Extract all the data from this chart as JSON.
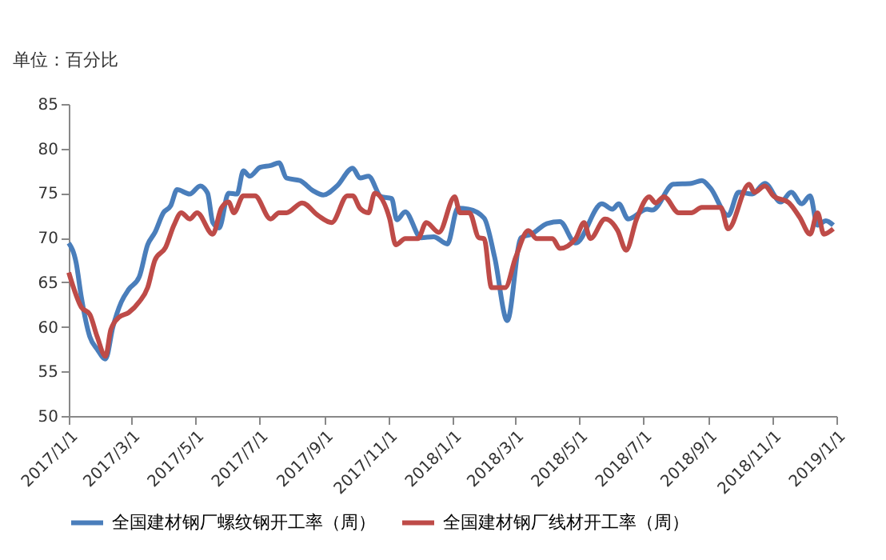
{
  "chart_data": {
    "type": "line",
    "annotations": [
      "单位：百分比"
    ],
    "xlim": [
      "2017-01-01",
      "2019-01-01"
    ],
    "xticks": [
      {
        "value": "2017-01-01",
        "label": "2017/1/1"
      },
      {
        "value": "2017-03-01",
        "label": "2017/3/1"
      },
      {
        "value": "2017-05-01",
        "label": "2017/5/1"
      },
      {
        "value": "2017-07-01",
        "label": "2017/7/1"
      },
      {
        "value": "2017-09-01",
        "label": "2017/9/1"
      },
      {
        "value": "2017-11-01",
        "label": "2017/11/1"
      },
      {
        "value": "2018-01-01",
        "label": "2018/1/1"
      },
      {
        "value": "2018-03-01",
        "label": "2018/3/1"
      },
      {
        "value": "2018-05-01",
        "label": "2018/5/1"
      },
      {
        "value": "2018-07-01",
        "label": "2018/7/1"
      },
      {
        "value": "2018-09-01",
        "label": "2018/9/1"
      },
      {
        "value": "2018-11-01",
        "label": "2018/11/1"
      },
      {
        "value": "2019-01-01",
        "label": "2019/1/1"
      }
    ],
    "ylim": [
      50,
      85
    ],
    "yticks": [
      50,
      55,
      60,
      65,
      70,
      75,
      80,
      85
    ],
    "grid": false,
    "legend": "bottom",
    "marker": "none",
    "line_style": "solid",
    "series": [
      {
        "name": "全国建材钢厂螺纹钢开工率（周）",
        "color": "#4a7ebb",
        "x": [
          "2017-01-01",
          "2017-01-08",
          "2017-01-13",
          "2017-01-21",
          "2017-01-28",
          "2017-02-05",
          "2017-02-12",
          "2017-02-20",
          "2017-02-27",
          "2017-03-09",
          "2017-03-17",
          "2017-03-24",
          "2017-04-01",
          "2017-04-08",
          "2017-04-14",
          "2017-04-26",
          "2017-05-06",
          "2017-05-13",
          "2017-05-18",
          "2017-05-24",
          "2017-06-02",
          "2017-06-10",
          "2017-06-16",
          "2017-06-22",
          "2017-07-02",
          "2017-07-12",
          "2017-07-20",
          "2017-07-27",
          "2017-08-09",
          "2017-08-21",
          "2017-08-31",
          "2017-09-13",
          "2017-09-28",
          "2017-10-05",
          "2017-10-13",
          "2017-10-25",
          "2017-11-04",
          "2017-11-09",
          "2017-11-17",
          "2017-12-02",
          "2017-12-14",
          "2017-12-27",
          "2018-01-06",
          "2018-01-16",
          "2018-01-31",
          "2018-02-10",
          "2018-02-22",
          "2018-03-07",
          "2018-03-17",
          "2018-04-01",
          "2018-04-13",
          "2018-04-28",
          "2018-05-23",
          "2018-06-02",
          "2018-06-08",
          "2018-06-17",
          "2018-07-05",
          "2018-07-10",
          "2018-07-30",
          "2018-08-16",
          "2018-08-26",
          "2018-09-03",
          "2018-09-20",
          "2018-09-30",
          "2018-10-13",
          "2018-10-25",
          "2018-11-09",
          "2018-11-19",
          "2018-11-29",
          "2018-12-07",
          "2018-12-14",
          "2018-12-22",
          "2018-12-29"
        ],
        "values": [
          69.4,
          67.2,
          63.3,
          58.9,
          57.5,
          56.4,
          60,
          62.8,
          64.2,
          65.6,
          69.2,
          70.6,
          72.8,
          73.6,
          75.4,
          74.9,
          75.8,
          75,
          71.7,
          71.1,
          75,
          74.9,
          77.5,
          76.9,
          77.9,
          78.1,
          78.4,
          76.7,
          76.4,
          75.3,
          74.8,
          75.8,
          77.8,
          76.7,
          76.9,
          74.6,
          74.4,
          72,
          72.9,
          70,
          70.1,
          69.3,
          73.3,
          73.2,
          72.2,
          67.8,
          60.7,
          70,
          70.4,
          71.6,
          71.8,
          69.4,
          73.8,
          73.2,
          73.8,
          72.1,
          73.2,
          73.1,
          76,
          76.1,
          76.4,
          75.6,
          72.5,
          75.1,
          74.9,
          76.1,
          74,
          75.1,
          73.8,
          74.7,
          71.4,
          71.9,
          71.4
        ]
      },
      {
        "name": "全国建材钢厂线材开工率（周）",
        "color": "#be4b48",
        "x": [
          "2017-01-01",
          "2017-01-13",
          "2017-01-21",
          "2017-01-28",
          "2017-02-05",
          "2017-02-10",
          "2017-02-18",
          "2017-02-27",
          "2017-03-09",
          "2017-03-17",
          "2017-03-24",
          "2017-04-03",
          "2017-04-11",
          "2017-04-18",
          "2017-04-26",
          "2017-05-03",
          "2017-05-18",
          "2017-05-26",
          "2017-06-02",
          "2017-06-07",
          "2017-06-16",
          "2017-06-27",
          "2017-07-12",
          "2017-07-20",
          "2017-07-27",
          "2017-08-11",
          "2017-08-26",
          "2017-09-08",
          "2017-09-23",
          "2017-09-28",
          "2017-10-05",
          "2017-10-13",
          "2017-10-19",
          "2017-11-02",
          "2017-11-08",
          "2017-11-17",
          "2017-11-29",
          "2017-12-07",
          "2017-12-19",
          "2018-01-03",
          "2018-01-08",
          "2018-01-17",
          "2018-01-26",
          "2018-01-31",
          "2018-02-07",
          "2018-02-20",
          "2018-03-02",
          "2018-03-14",
          "2018-03-22",
          "2018-04-06",
          "2018-04-13",
          "2018-04-28",
          "2018-05-06",
          "2018-05-12",
          "2018-05-26",
          "2018-06-07",
          "2018-06-15",
          "2018-06-25",
          "2018-07-07",
          "2018-07-13",
          "2018-07-21",
          "2018-08-04",
          "2018-08-16",
          "2018-08-26",
          "2018-09-13",
          "2018-09-20",
          "2018-10-10",
          "2018-10-15",
          "2018-10-25",
          "2018-11-02",
          "2018-11-17",
          "2018-11-27",
          "2018-12-07",
          "2018-12-14",
          "2018-12-20",
          "2018-12-29"
        ],
        "values": [
          66.1,
          62.2,
          61.4,
          58.9,
          56.7,
          59.7,
          61.1,
          61.6,
          62.8,
          64.4,
          67.5,
          68.9,
          71.4,
          72.8,
          72.1,
          72.8,
          70.4,
          73.3,
          74,
          72.8,
          74.7,
          74.7,
          72.1,
          72.8,
          72.8,
          73.9,
          72.5,
          71.7,
          74.7,
          74.7,
          73.3,
          72.8,
          75,
          72.2,
          69.2,
          69.9,
          69.9,
          71.7,
          70.6,
          74.6,
          72.8,
          72.8,
          70,
          69.9,
          64.4,
          64.4,
          67.8,
          70.8,
          69.9,
          69.9,
          68.8,
          69.9,
          71.7,
          69.9,
          72.1,
          70.8,
          68.6,
          72.1,
          74.6,
          73.9,
          74.6,
          72.8,
          72.8,
          73.4,
          73.4,
          71,
          76,
          75.1,
          75.8,
          74.7,
          73.9,
          72.3,
          70.4,
          72.8,
          70.4,
          71
        ]
      }
    ]
  }
}
